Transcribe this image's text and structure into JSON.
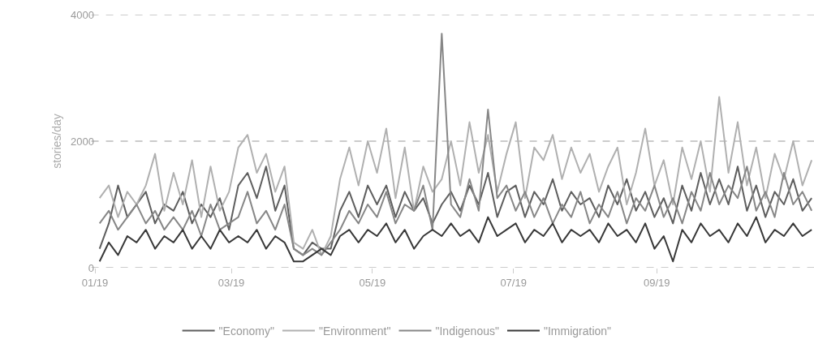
{
  "chart_data": {
    "type": "line",
    "ylabel": "stories/day",
    "ylim": [
      0,
      4000
    ],
    "yticks": [
      0,
      2000,
      4000
    ],
    "xlim": [
      "2019-01-01",
      "2019-11-08"
    ],
    "xticks": [
      {
        "value": "2019-01-01",
        "label": "01/19"
      },
      {
        "value": "2019-03-01",
        "label": "03/19"
      },
      {
        "value": "2019-05-01",
        "label": "05/19"
      },
      {
        "value": "2019-07-01",
        "label": "07/19"
      },
      {
        "value": "2019-09-01",
        "label": "09/19"
      }
    ],
    "grid": "y",
    "legend": "bottom",
    "line_style": "solid",
    "marker": "none",
    "x": [
      "2019-01-03",
      "2019-01-07",
      "2019-01-11",
      "2019-01-15",
      "2019-01-19",
      "2019-01-23",
      "2019-01-27",
      "2019-01-31",
      "2019-02-04",
      "2019-02-08",
      "2019-02-12",
      "2019-02-16",
      "2019-02-20",
      "2019-02-24",
      "2019-02-28",
      "2019-03-04",
      "2019-03-08",
      "2019-03-12",
      "2019-03-16",
      "2019-03-20",
      "2019-03-24",
      "2019-03-28",
      "2019-04-01",
      "2019-04-05",
      "2019-04-09",
      "2019-04-13",
      "2019-04-17",
      "2019-04-21",
      "2019-04-25",
      "2019-04-29",
      "2019-05-03",
      "2019-05-07",
      "2019-05-11",
      "2019-05-15",
      "2019-05-19",
      "2019-05-23",
      "2019-05-27",
      "2019-05-31",
      "2019-06-04",
      "2019-06-08",
      "2019-06-12",
      "2019-06-16",
      "2019-06-20",
      "2019-06-24",
      "2019-06-28",
      "2019-07-02",
      "2019-07-06",
      "2019-07-10",
      "2019-07-14",
      "2019-07-18",
      "2019-07-22",
      "2019-07-26",
      "2019-07-30",
      "2019-08-03",
      "2019-08-07",
      "2019-08-11",
      "2019-08-15",
      "2019-08-19",
      "2019-08-23",
      "2019-08-27",
      "2019-08-31",
      "2019-09-04",
      "2019-09-08",
      "2019-09-12",
      "2019-09-16",
      "2019-09-20",
      "2019-09-24",
      "2019-09-28",
      "2019-10-02",
      "2019-10-06",
      "2019-10-10",
      "2019-10-14",
      "2019-10-18",
      "2019-10-22",
      "2019-10-26",
      "2019-10-30",
      "2019-11-03",
      "2019-11-07"
    ],
    "series": [
      {
        "name": "\"Economy\"",
        "color": "#5e5e5e",
        "values": [
          300,
          700,
          1300,
          800,
          1000,
          1200,
          700,
          1000,
          900,
          1200,
          700,
          1000,
          800,
          1100,
          600,
          1300,
          1500,
          1100,
          1600,
          900,
          1300,
          300,
          200,
          400,
          300,
          300,
          900,
          1200,
          800,
          1300,
          1000,
          1300,
          800,
          1200,
          900,
          1100,
          700,
          1000,
          1200,
          900,
          1300,
          1000,
          1500,
          800,
          1200,
          1300,
          800,
          1200,
          1000,
          1400,
          900,
          1200,
          1000,
          1100,
          800,
          1300,
          1000,
          1400,
          900,
          1200,
          800,
          1100,
          700,
          1300,
          900,
          1500,
          1000,
          1400,
          1000,
          1600,
          900,
          1300,
          800,
          1200,
          1000,
          1400,
          900,
          1100
        ]
      },
      {
        "name": "\"Environment\"",
        "color": "#b0b0b0",
        "values": [
          1100,
          1300,
          800,
          1200,
          1000,
          1300,
          1800,
          900,
          1500,
          1000,
          1700,
          800,
          1600,
          900,
          1200,
          1900,
          2100,
          1500,
          1800,
          1200,
          1600,
          400,
          300,
          600,
          200,
          500,
          1400,
          1900,
          1300,
          2000,
          1500,
          2200,
          1100,
          1900,
          900,
          1600,
          1200,
          1400,
          2000,
          1300,
          2300,
          1500,
          2100,
          1200,
          1800,
          2300,
          1100,
          1900,
          1700,
          2100,
          1400,
          1900,
          1500,
          1800,
          1200,
          1600,
          1900,
          1000,
          1500,
          2200,
          1300,
          1700,
          1000,
          1900,
          1400,
          2000,
          1200,
          2700,
          1500,
          2300,
          1300,
          1900,
          1100,
          1800,
          1400,
          2000,
          1300,
          1700
        ]
      },
      {
        "name": "\"Indigenous\"",
        "color": "#878787",
        "values": [
          700,
          900,
          600,
          800,
          1000,
          700,
          900,
          600,
          800,
          600,
          900,
          500,
          1000,
          600,
          700,
          800,
          1200,
          700,
          900,
          600,
          1000,
          300,
          200,
          300,
          200,
          400,
          600,
          900,
          700,
          1000,
          800,
          1200,
          700,
          1000,
          900,
          1300,
          600,
          3700,
          1000,
          800,
          1400,
          900,
          2500,
          1100,
          1300,
          900,
          1200,
          800,
          1100,
          700,
          1000,
          800,
          1200,
          700,
          1000,
          800,
          1200,
          700,
          1100,
          900,
          1300,
          800,
          1100,
          700,
          1200,
          900,
          1500,
          1000,
          1300,
          1100,
          1600,
          900,
          1200,
          800,
          1500,
          1000,
          1200,
          900
        ]
      },
      {
        "name": "\"Immigration\"",
        "color": "#383838",
        "values": [
          100,
          400,
          200,
          500,
          400,
          600,
          300,
          500,
          400,
          600,
          300,
          500,
          300,
          600,
          400,
          500,
          400,
          600,
          300,
          500,
          400,
          100,
          100,
          200,
          300,
          200,
          500,
          600,
          400,
          600,
          500,
          700,
          400,
          600,
          300,
          500,
          600,
          500,
          700,
          500,
          600,
          400,
          800,
          500,
          600,
          700,
          400,
          600,
          500,
          700,
          400,
          600,
          500,
          600,
          400,
          700,
          500,
          600,
          400,
          700,
          300,
          500,
          100,
          600,
          400,
          700,
          500,
          600,
          400,
          700,
          500,
          800,
          400,
          600,
          500,
          700,
          500,
          600
        ]
      }
    ]
  }
}
